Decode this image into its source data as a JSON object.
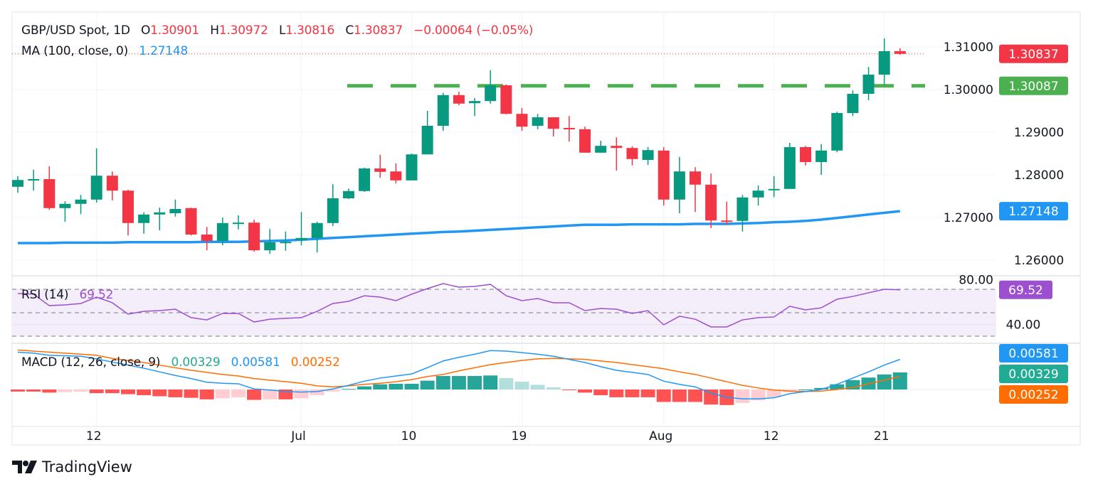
{
  "header": {
    "symbol": "GBP/USD Spot, 1D",
    "o_label": "O",
    "open": "1.30901",
    "h_label": "H",
    "high": "1.30972",
    "l_label": "L",
    "low": "1.30816",
    "c_label": "C",
    "close": "1.30837",
    "change": "−0.00064 (−0.05%)"
  },
  "ma_legend": {
    "label": "MA (100, close, 0)",
    "value": "1.27148"
  },
  "rsi_legend": {
    "label": "RSI (14)",
    "value": "69.52"
  },
  "macd_legend": {
    "label": "MACD (12, 26, close, 9)",
    "histogram": "0.00329",
    "macd": "0.00581",
    "signal": "0.00252"
  },
  "price_axis": {
    "ticks": [
      {
        "value": 1.31,
        "label": "1.31000"
      },
      {
        "value": 1.3,
        "label": "1.30000"
      },
      {
        "value": 1.29,
        "label": "1.29000"
      },
      {
        "value": 1.28,
        "label": "1.28000"
      },
      {
        "value": 1.27,
        "label": "1.27000"
      },
      {
        "value": 1.26,
        "label": "1.26000"
      }
    ],
    "tags": {
      "last_price": {
        "value": 1.30837,
        "label": "1.30837"
      },
      "level": {
        "value": 1.30087,
        "label": "1.30087"
      },
      "ma": {
        "value": 1.27148,
        "label": "1.27148"
      }
    }
  },
  "rsi_axis": {
    "ticks": [
      {
        "value": 80,
        "label": "80.00"
      },
      {
        "value": 40,
        "label": "40.00"
      }
    ],
    "levels": [
      70,
      50,
      30
    ],
    "tag": {
      "value": 69.52,
      "label": "69.52"
    }
  },
  "macd_axis": {
    "tags": {
      "macd": {
        "value": 0.00581,
        "label": "0.00581"
      },
      "histogram": {
        "value": 0.00329,
        "label": "0.00329"
      },
      "signal": {
        "value": 0.00252,
        "label": "0.00252"
      }
    }
  },
  "time_axis": [
    {
      "label": "12",
      "index": 5
    },
    {
      "label": "Jul",
      "index": 18
    },
    {
      "label": "10",
      "index": 25
    },
    {
      "label": "19",
      "index": 32
    },
    {
      "label": "Aug",
      "index": 41
    },
    {
      "label": "12",
      "index": 48
    },
    {
      "label": "21",
      "index": 55
    }
  ],
  "colors": {
    "up": "#089981",
    "down": "#f23645",
    "ma": "#2196f3",
    "level": "#4caf50",
    "rsi": "#9c4fcf",
    "macd": "#2196f3",
    "signal": "#ff6d00",
    "hist_up_strong": "#26a69a",
    "hist_up_weak": "#b2dfdb",
    "hist_down_strong": "#ff5252",
    "hist_down_weak": "#ffcdd2"
  },
  "brand": "TradingView",
  "chart_data": {
    "type": "candlestick",
    "title": "GBP/USD Spot, 1D",
    "ylim": [
      1.2555,
      1.3175
    ],
    "grid": true,
    "level_line": 1.30087,
    "ohlc": [
      [
        1.2772,
        1.2797,
        1.2758,
        1.2788
      ],
      [
        1.2787,
        1.2812,
        1.2763,
        1.279
      ],
      [
        1.279,
        1.282,
        1.2718,
        1.2722
      ],
      [
        1.2722,
        1.2738,
        1.269,
        1.2732
      ],
      [
        1.2732,
        1.2753,
        1.2708,
        1.2742
      ],
      [
        1.2742,
        1.2862,
        1.2735,
        1.2798
      ],
      [
        1.2798,
        1.2808,
        1.274,
        1.2763
      ],
      [
        1.2763,
        1.2765,
        1.2658,
        1.2687
      ],
      [
        1.2687,
        1.2712,
        1.2662,
        1.2707
      ],
      [
        1.2707,
        1.2723,
        1.267,
        1.2712
      ],
      [
        1.271,
        1.2742,
        1.2702,
        1.272
      ],
      [
        1.2722,
        1.2723,
        1.2658,
        1.266
      ],
      [
        1.266,
        1.2678,
        1.2623,
        1.2645
      ],
      [
        1.2645,
        1.27,
        1.2635,
        1.2687
      ],
      [
        1.2687,
        1.2705,
        1.2672,
        1.2688
      ],
      [
        1.2688,
        1.2695,
        1.262,
        1.2623
      ],
      [
        1.2623,
        1.2673,
        1.2615,
        1.2642
      ],
      [
        1.2642,
        1.2667,
        1.2622,
        1.2643
      ],
      [
        1.2647,
        1.2713,
        1.2635,
        1.2652
      ],
      [
        1.2652,
        1.269,
        1.2618,
        1.2687
      ],
      [
        1.2687,
        1.2778,
        1.268,
        1.2745
      ],
      [
        1.2745,
        1.2768,
        1.2743,
        1.2762
      ],
      [
        1.2762,
        1.2817,
        1.276,
        1.2815
      ],
      [
        1.2815,
        1.2847,
        1.2793,
        1.2807
      ],
      [
        1.2808,
        1.2827,
        1.278,
        1.2787
      ],
      [
        1.2787,
        1.285,
        1.2787,
        1.2848
      ],
      [
        1.2848,
        1.295,
        1.2848,
        1.2915
      ],
      [
        1.2915,
        1.2992,
        1.2903,
        1.2987
      ],
      [
        1.2987,
        1.2995,
        1.2963,
        1.2967
      ],
      [
        1.2968,
        1.298,
        1.2938,
        1.2973
      ],
      [
        1.2973,
        1.3045,
        1.2967,
        1.301
      ],
      [
        1.301,
        1.3012,
        1.2942,
        1.2943
      ],
      [
        1.2943,
        1.2957,
        1.2903,
        1.2913
      ],
      [
        1.2915,
        1.2943,
        1.2907,
        1.2935
      ],
      [
        1.2935,
        1.2935,
        1.289,
        1.2908
      ],
      [
        1.291,
        1.2938,
        1.2878,
        1.2907
      ],
      [
        1.2907,
        1.2913,
        1.2852,
        1.2852
      ],
      [
        1.2852,
        1.288,
        1.2852,
        1.2868
      ],
      [
        1.2868,
        1.2888,
        1.281,
        1.2863
      ],
      [
        1.2863,
        1.2867,
        1.2822,
        1.2837
      ],
      [
        1.2835,
        1.2865,
        1.2823,
        1.2858
      ],
      [
        1.2857,
        1.2865,
        1.2728,
        1.2742
      ],
      [
        1.2742,
        1.2842,
        1.271,
        1.2808
      ],
      [
        1.2808,
        1.2818,
        1.2713,
        1.2777
      ],
      [
        1.2777,
        1.2803,
        1.2675,
        1.2693
      ],
      [
        1.2693,
        1.2737,
        1.2683,
        1.2692
      ],
      [
        1.2692,
        1.2753,
        1.2667,
        1.2747
      ],
      [
        1.2747,
        1.2775,
        1.2728,
        1.2763
      ],
      [
        1.2765,
        1.2797,
        1.2748,
        1.2767
      ],
      [
        1.2767,
        1.2875,
        1.2767,
        1.2865
      ],
      [
        1.2865,
        1.2868,
        1.2822,
        1.283
      ],
      [
        1.283,
        1.2872,
        1.28,
        1.2857
      ],
      [
        1.2857,
        1.2948,
        1.2853,
        1.2945
      ],
      [
        1.2945,
        1.2998,
        1.2938,
        1.299
      ],
      [
        1.299,
        1.3053,
        1.2975,
        1.3035
      ],
      [
        1.3035,
        1.312,
        1.3012,
        1.309
      ],
      [
        1.30901,
        1.30972,
        1.30816,
        1.30837
      ]
    ],
    "ma100": [
      1.264,
      1.264,
      1.264,
      1.2641,
      1.2641,
      1.2641,
      1.2641,
      1.2642,
      1.2642,
      1.2642,
      1.2642,
      1.2642,
      1.2643,
      1.2643,
      1.2643,
      1.2644,
      1.2645,
      1.2646,
      1.2648,
      1.265,
      1.2652,
      1.2654,
      1.2656,
      1.2658,
      1.266,
      1.2662,
      1.2664,
      1.2666,
      1.2667,
      1.2669,
      1.2671,
      1.2673,
      1.2675,
      1.2677,
      1.2679,
      1.2681,
      1.2683,
      1.2683,
      1.2683,
      1.2684,
      1.2684,
      1.2684,
      1.2684,
      1.2685,
      1.2685,
      1.2685,
      1.2686,
      1.2687,
      1.2689,
      1.269,
      1.2692,
      1.2695,
      1.2699,
      1.2703,
      1.2707,
      1.2711,
      1.27148
    ],
    "rsi": [
      66.4,
      65.8,
      56.1,
      56.7,
      57.9,
      63.3,
      58.5,
      48.8,
      51.2,
      51.8,
      53.0,
      45.8,
      43.9,
      49.4,
      49.4,
      42.1,
      44.5,
      45.2,
      45.8,
      51.2,
      57.9,
      59.7,
      64.5,
      63.3,
      60.3,
      65.8,
      70.6,
      74.8,
      71.8,
      72.4,
      74.2,
      64.5,
      60.3,
      62.1,
      58.5,
      58.5,
      51.8,
      53.6,
      53.0,
      49.4,
      51.8,
      39.7,
      47.0,
      44.5,
      37.9,
      37.9,
      43.9,
      45.8,
      46.4,
      55.5,
      52.4,
      54.2,
      61.5,
      63.9,
      67.0,
      70.0,
      69.52
    ],
    "rsi_range": [
      0,
      100
    ],
    "macd": [
      0.0072,
      0.007,
      0.0066,
      0.0065,
      0.0064,
      0.0059,
      0.0053,
      0.0047,
      0.0041,
      0.0034,
      0.0027,
      0.0021,
      0.0014,
      0.0012,
      0.0011,
      0.0001,
      -0.0001,
      -0.0004,
      -0.0005,
      -0.0004,
      0.0001,
      0.0008,
      0.0016,
      0.0022,
      0.0026,
      0.003,
      0.0042,
      0.0055,
      0.0062,
      0.0068,
      0.0075,
      0.0074,
      0.0071,
      0.0068,
      0.0064,
      0.0058,
      0.0052,
      0.0044,
      0.0037,
      0.0033,
      0.0029,
      0.0016,
      0.001,
      0.0005,
      -0.0007,
      -0.0015,
      -0.0018,
      -0.0018,
      -0.0016,
      -0.0008,
      -0.0004,
      0.0,
      0.001,
      0.0022,
      0.0034,
      0.0047,
      0.00581
    ],
    "signal": [
      0.0076,
      0.0074,
      0.0072,
      0.007,
      0.0068,
      0.0066,
      0.006,
      0.0056,
      0.0052,
      0.0047,
      0.0042,
      0.0037,
      0.0033,
      0.0029,
      0.0026,
      0.0021,
      0.0018,
      0.0015,
      0.0012,
      0.0007,
      0.0005,
      0.0007,
      0.001,
      0.0012,
      0.0015,
      0.0019,
      0.0025,
      0.0029,
      0.0036,
      0.0042,
      0.0048,
      0.0052,
      0.0056,
      0.0059,
      0.006,
      0.0059,
      0.0058,
      0.0055,
      0.0052,
      0.0048,
      0.0044,
      0.004,
      0.0034,
      0.0029,
      0.0022,
      0.0015,
      0.0008,
      0.0003,
      -0.0001,
      -0.0003,
      -0.0004,
      -0.0003,
      0.0,
      0.0004,
      0.0011,
      0.0018,
      0.00252
    ],
    "histogram": [
      -0.0004,
      -0.0004,
      -0.0006,
      -0.0005,
      -0.0004,
      -0.0007,
      -0.0007,
      -0.0009,
      -0.0011,
      -0.0013,
      -0.0015,
      -0.0016,
      -0.0019,
      -0.0017,
      -0.0015,
      -0.002,
      -0.0019,
      -0.0019,
      -0.0017,
      -0.0011,
      -0.0004,
      0.0001,
      0.0006,
      0.001,
      0.0011,
      0.0011,
      0.0017,
      0.0026,
      0.0026,
      0.0026,
      0.0027,
      0.0022,
      0.0015,
      0.0009,
      0.0004,
      -0.0001,
      -0.0006,
      -0.0011,
      -0.0015,
      -0.0015,
      -0.0015,
      -0.0024,
      -0.0024,
      -0.0024,
      -0.0029,
      -0.003,
      -0.0026,
      -0.0021,
      -0.0015,
      -0.0005,
      0.0,
      0.0003,
      0.001,
      0.0018,
      0.0023,
      0.0029,
      0.00329
    ]
  }
}
